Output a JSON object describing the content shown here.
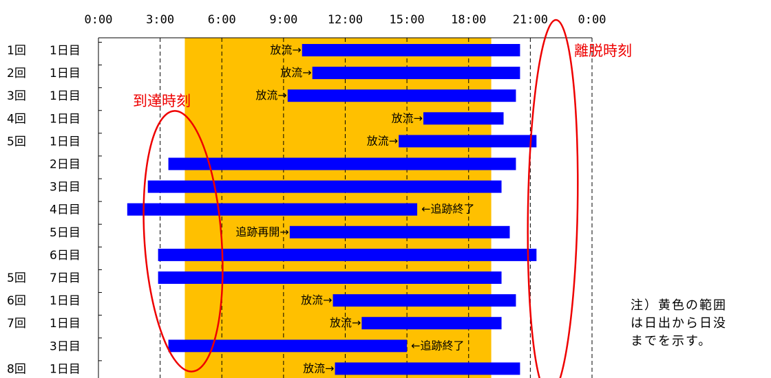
{
  "chart_data": {
    "type": "gantt",
    "x_ticks": [
      "0:00",
      "3:00",
      "6:00",
      "9:00",
      "12:00",
      "15:00",
      "18:00",
      "21:00",
      "0:00"
    ],
    "xlim_hours": [
      0,
      24
    ],
    "daylight_hours": [
      4.2,
      19.1
    ],
    "rows": [
      {
        "round": "1回",
        "day": "1日目",
        "start": 9.9,
        "end": 20.5,
        "annotation": "放流→",
        "annotation_side": "left"
      },
      {
        "round": "2回",
        "day": "1日目",
        "start": 10.4,
        "end": 20.5,
        "annotation": "放流→",
        "annotation_side": "left"
      },
      {
        "round": "3回",
        "day": "1日目",
        "start": 9.2,
        "end": 20.3,
        "annotation": "放流→",
        "annotation_side": "left"
      },
      {
        "round": "4回",
        "day": "1日目",
        "start": 15.8,
        "end": 19.7,
        "annotation": "放流→",
        "annotation_side": "left"
      },
      {
        "round": "5回",
        "day": "1日目",
        "start": 14.6,
        "end": 21.3,
        "annotation": "放流→",
        "annotation_side": "left"
      },
      {
        "round": "",
        "day": "2日目",
        "start": 3.4,
        "end": 20.3,
        "annotation": "",
        "annotation_side": ""
      },
      {
        "round": "",
        "day": "3日目",
        "start": 2.4,
        "end": 19.6,
        "annotation": "",
        "annotation_side": ""
      },
      {
        "round": "",
        "day": "4日目",
        "start": 1.4,
        "end": 15.5,
        "annotation": "←追跡終了",
        "annotation_side": "right"
      },
      {
        "round": "",
        "day": "5日目",
        "start": 9.3,
        "end": 20.0,
        "annotation": "追跡再開→",
        "annotation_side": "left"
      },
      {
        "round": "",
        "day": "6日目",
        "start": 2.9,
        "end": 21.3,
        "annotation": "",
        "annotation_side": ""
      },
      {
        "round": "5回",
        "day": "7日目",
        "start": 2.9,
        "end": 19.6,
        "annotation": "",
        "annotation_side": ""
      },
      {
        "round": "6回",
        "day": "1日目",
        "start": 11.4,
        "end": 20.3,
        "annotation": "放流→",
        "annotation_side": "left"
      },
      {
        "round": "7回",
        "day": "1日目",
        "start": 12.8,
        "end": 19.6,
        "annotation": "放流→",
        "annotation_side": "left"
      },
      {
        "round": "",
        "day": "3日目",
        "start": 3.4,
        "end": 15.0,
        "annotation": "←追跡終了",
        "annotation_side": "right"
      },
      {
        "round": "8回",
        "day": "1日目",
        "start": 11.5,
        "end": 20.5,
        "annotation": "放流→",
        "annotation_side": "left"
      }
    ],
    "arrival_label": "到達時刻",
    "departure_label": "離脱時刻",
    "colors": {
      "bar": "#0000ff",
      "daylight": "#ffc000",
      "label_red": "#ee0000"
    }
  },
  "note": {
    "lines": [
      "注）黄色の範囲",
      "は日出から日没",
      "までを示す。"
    ]
  }
}
